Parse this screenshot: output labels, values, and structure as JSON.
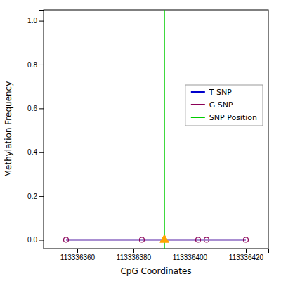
{
  "chart_data": {
    "type": "line",
    "x": [
      113336356,
      113336383,
      113336391,
      113336403,
      113336406,
      113336420
    ],
    "series": [
      {
        "name": "T SNP",
        "color": "#0000cc",
        "values": [
          0.0,
          0.0,
          0.0,
          0.0,
          0.0,
          0.0
        ]
      },
      {
        "name": "G SNP",
        "color": "#8b0057",
        "values": [
          0.0,
          0.0,
          0.0,
          0.0,
          0.0,
          0.0
        ],
        "marker": "circle"
      },
      {
        "name": "SNP Position",
        "type": "vline",
        "color": "#00cc00",
        "x": [
          113336391
        ]
      }
    ],
    "annotations": [
      {
        "type": "marker",
        "marker": "triangle",
        "x": 113336391,
        "y": 0.0,
        "color": "#ffa500"
      }
    ],
    "xlabel": "CpG Coordinates",
    "ylabel": "Methylation Frequency",
    "xlim": [
      113336348,
      113336428
    ],
    "ylim": [
      -0.04,
      1.05
    ],
    "xticks": [
      113336360,
      113336380,
      113336400,
      113336420
    ],
    "yticks": [
      {
        "value": 0.0,
        "label": "0.0"
      },
      0.2,
      0.4,
      0.6,
      0.8,
      {
        "value": 1.0,
        "label": "1.0"
      }
    ],
    "grid": false,
    "legend": "right"
  }
}
